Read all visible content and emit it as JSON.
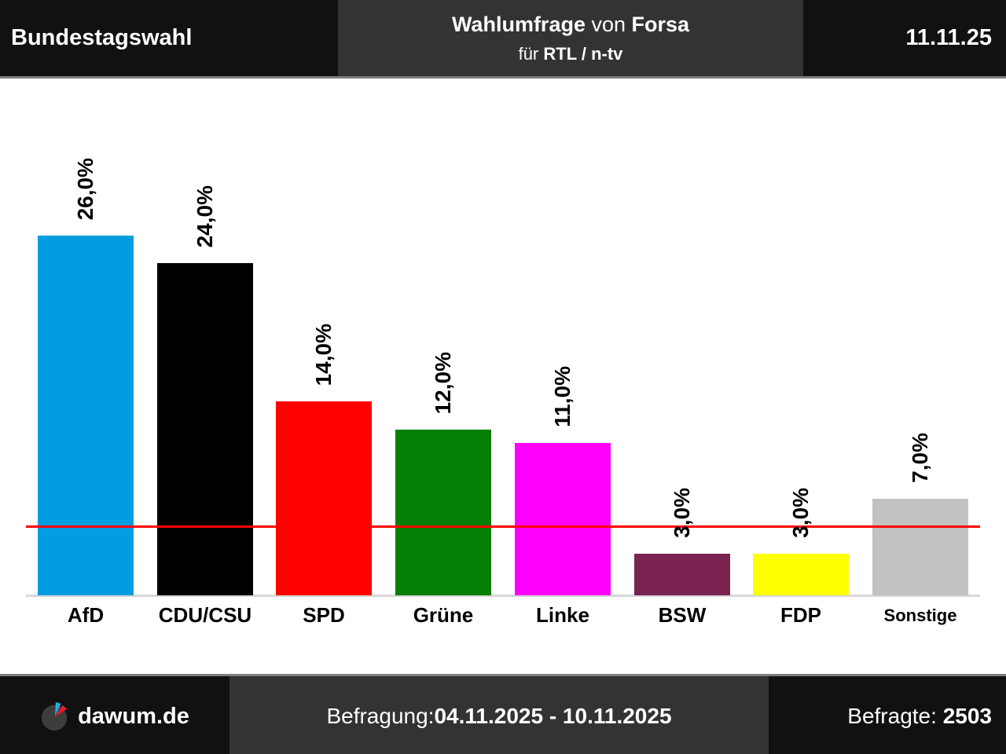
{
  "header": {
    "election": "Bundestagswahl",
    "title_bold1": "Wahlumfrage",
    "title_mid": " von ",
    "title_bold2": "Forsa",
    "subtitle_prefix": "für ",
    "subtitle_bold": "RTL / n-tv",
    "date": "11.11.25"
  },
  "chart_data": {
    "type": "bar",
    "title": "Wahlumfrage von Forsa für RTL / n-tv",
    "election": "Bundestagswahl",
    "categories": [
      "AfD",
      "CDU/CSU",
      "SPD",
      "Grüne",
      "Linke",
      "BSW",
      "FDP",
      "Sonstige"
    ],
    "values": [
      26.0,
      24.0,
      14.0,
      12.0,
      11.0,
      3.0,
      3.0,
      7.0
    ],
    "value_labels": [
      "26,0%",
      "24,0%",
      "14,0%",
      "12,0%",
      "11,0%",
      "3,0%",
      "3,0%",
      "7,0%"
    ],
    "bar_colors": [
      "#009ee0",
      "#000000",
      "#ff0000",
      "#078007",
      "#ff00ff",
      "#7a2350",
      "#ffff00",
      "#c2c2c2"
    ],
    "threshold_line": {
      "value": 5.0,
      "color": "#fe0000",
      "meaning": "5%-Hürde"
    },
    "ylim": [
      0,
      28
    ],
    "grid": false,
    "legend": "none",
    "baseline_color": "#d8d8d8"
  },
  "footer": {
    "brand": "dawum.de",
    "logo": "pie-chart-logo",
    "logo_colors": {
      "circle": "#3d3d3d",
      "wedge_blue": "#29abe2",
      "wedge_red": "#e8192c"
    },
    "survey_label": "Befragung: ",
    "survey_period": "04.11.2025 - 10.11.2025",
    "respondents_label": "Befragte: ",
    "respondents_value": "2503"
  },
  "theme": {
    "dark_panel": "#111111",
    "mid_panel": "#333333",
    "divider_gray": "#7e7e7e",
    "text_light": "#ffffff",
    "text_dark": "#000000"
  }
}
